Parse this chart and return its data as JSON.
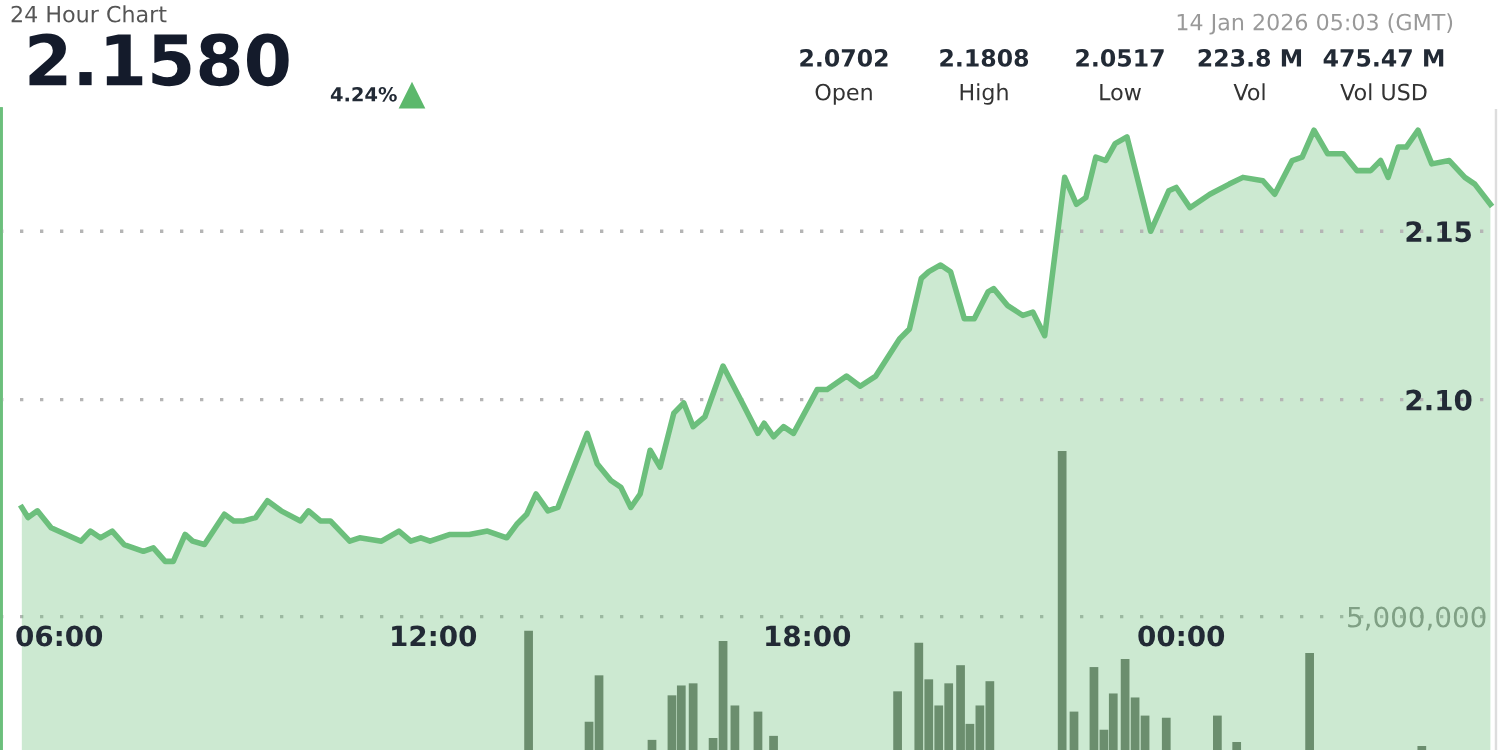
{
  "chart_data": {
    "type": "area",
    "title": "24 Hour Chart",
    "subtitle": "2.1580",
    "annotations": [
      "4.24%",
      "14 Jan 2026 05:03 (GMT)",
      "2.0702",
      "Open",
      "2.1808",
      "High",
      "2.0517",
      "Low",
      "223.8 M",
      "Vol",
      "475.47 M",
      "Vol USD"
    ],
    "xlim": [
      5.05,
      29.05
    ],
    "xticks": [
      {
        "value": 6,
        "label": "06:00"
      },
      {
        "value": 12,
        "label": "12:00"
      },
      {
        "value": 18,
        "label": "18:00"
      },
      {
        "value": 24,
        "label": "00:00"
      }
    ],
    "ylim": [
      1.996,
      2.186
    ],
    "yticks": [
      {
        "value": 2.1,
        "label": "2.10"
      },
      2.15
    ],
    "y2lim": [
      0,
      24000000
    ],
    "y2ticks": [
      {
        "value": 5000000,
        "label": "5,000,000"
      }
    ],
    "grid": "y",
    "series": [
      {
        "color": "#6cbf7c",
        "x": [
          5.4,
          5.5,
          5.65,
          5.87,
          6.35,
          6.5,
          6.66,
          6.85,
          7.04,
          7.35,
          7.51,
          7.7,
          7.83,
          8.02,
          8.14,
          8.33,
          8.65,
          8.8,
          8.96,
          9.15,
          9.34,
          9.56,
          9.87,
          10.0,
          10.19,
          10.35,
          10.66,
          10.82,
          11.17,
          11.45,
          11.64,
          11.8,
          11.95,
          12.27,
          12.58,
          12.87,
          13.18,
          13.34,
          13.5,
          13.65,
          13.84,
          14.0,
          14.47,
          14.63,
          14.85,
          15.01,
          15.17,
          15.32,
          15.48,
          15.64,
          15.86,
          16.02,
          16.17,
          16.36,
          16.65,
          16.96,
          17.21,
          17.31,
          17.46,
          17.62,
          17.78,
          18.16,
          18.32,
          18.63,
          18.85,
          19.1,
          19.48,
          19.64,
          19.83,
          19.95,
          20.14,
          20.3,
          20.52,
          20.68,
          20.9,
          20.99,
          21.21,
          21.46,
          21.62,
          21.81,
          22.13,
          22.32,
          22.47,
          22.63,
          22.79,
          22.94,
          23.13,
          23.51,
          23.8,
          23.92,
          24.14,
          24.46,
          24.77,
          24.99,
          25.31,
          25.5,
          25.78,
          25.94,
          26.13,
          26.35,
          26.6,
          26.82,
          27.04,
          27.2,
          27.32,
          27.48,
          27.61,
          27.8,
          28.02,
          28.3,
          28.55,
          28.71,
          28.96
        ],
        "values": [
          2.068,
          2.065,
          2.067,
          2.062,
          2.058,
          2.061,
          2.059,
          2.061,
          2.057,
          2.055,
          2.056,
          2.052,
          2.052,
          2.06,
          2.058,
          2.057,
          2.066,
          2.064,
          2.064,
          2.065,
          2.07,
          2.067,
          2.064,
          2.067,
          2.064,
          2.064,
          2.058,
          2.059,
          2.058,
          2.061,
          2.058,
          2.059,
          2.058,
          2.06,
          2.06,
          2.061,
          2.059,
          2.063,
          2.066,
          2.072,
          2.067,
          2.068,
          2.09,
          2.081,
          2.076,
          2.074,
          2.068,
          2.072,
          2.085,
          2.08,
          2.096,
          2.099,
          2.092,
          2.095,
          2.11,
          2.099,
          2.09,
          2.093,
          2.089,
          2.092,
          2.09,
          2.103,
          2.103,
          2.107,
          2.104,
          2.107,
          2.118,
          2.121,
          2.136,
          2.138,
          2.14,
          2.138,
          2.124,
          2.124,
          2.132,
          2.133,
          2.128,
          2.125,
          2.126,
          2.119,
          2.166,
          2.158,
          2.16,
          2.172,
          2.171,
          2.176,
          2.178,
          2.15,
          2.162,
          2.163,
          2.157,
          2.161,
          2.164,
          2.166,
          2.165,
          2.161,
          2.171,
          2.172,
          2.18,
          2.173,
          2.173,
          2.168,
          2.168,
          2.171,
          2.166,
          2.175,
          2.175,
          2.18,
          2.17,
          2.171,
          2.166,
          2.164,
          2.158
        ]
      },
      {
        "type": "bar",
        "axis": "y2",
        "color": "#6b7368",
        "x": [
          13.53,
          14.5,
          14.66,
          15.51,
          15.83,
          15.98,
          16.17,
          16.49,
          16.65,
          16.84,
          17.21,
          17.46,
          19.45,
          19.79,
          19.95,
          20.11,
          20.27,
          20.46,
          20.61,
          20.77,
          20.93,
          22.09,
          22.28,
          22.6,
          22.76,
          22.91,
          23.1,
          23.26,
          23.42,
          23.76,
          24.58,
          24.89,
          26.06,
          27.86
        ],
        "values": [
          4470000,
          1060000,
          2800000,
          380000,
          2050000,
          2420000,
          2500000,
          450000,
          4090000,
          1670000,
          1440000,
          530000,
          2200000,
          4020000,
          2650000,
          1670000,
          2500000,
          3180000,
          980000,
          1670000,
          2580000,
          11210000,
          1440000,
          3110000,
          760000,
          2120000,
          3410000,
          1970000,
          1290000,
          1210000,
          1290000,
          300000,
          3640000,
          150000
        ]
      }
    ]
  }
}
